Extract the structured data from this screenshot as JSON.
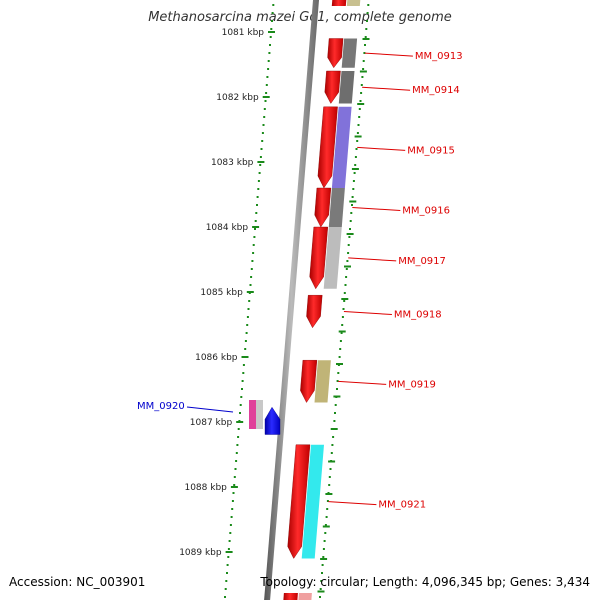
{
  "title": "Methanosarcina mazei Go1, complete genome",
  "footer": {
    "accession": "Accession: NC_003901",
    "topology": "Topology: circular; Length: 4,096,345 bp; Genes: 3,434"
  },
  "colors": {
    "dot_track": "#1a8a1a",
    "backbone": "#7a7a7a",
    "gene_forward": "#ee0000",
    "label_forward": "#dd0000",
    "label_reverse": "#0000cc"
  },
  "ticks": [
    {
      "kbp": 1081,
      "label": "1081 kbp"
    },
    {
      "kbp": 1082,
      "label": "1082 kbp"
    },
    {
      "kbp": 1083,
      "label": "1083 kbp"
    },
    {
      "kbp": 1084,
      "label": "1084 kbp"
    },
    {
      "kbp": 1085,
      "label": "1085 kbp"
    },
    {
      "kbp": 1086,
      "label": "1086 kbp"
    },
    {
      "kbp": 1087,
      "label": "1087 kbp"
    },
    {
      "kbp": 1088,
      "label": "1088 kbp"
    },
    {
      "kbp": 1089,
      "label": "1089 kbp"
    }
  ],
  "genes": [
    {
      "id": "MM_0913",
      "label": "MM_0913",
      "start_kbp": 1081.1,
      "end_kbp": 1081.55,
      "strand": "+",
      "feature_color": "#707070"
    },
    {
      "id": "MM_0914",
      "label": "MM_0914",
      "start_kbp": 1081.6,
      "end_kbp": 1082.1,
      "strand": "+",
      "feature_color": "#666666"
    },
    {
      "id": "MM_0915",
      "label": "MM_0915",
      "start_kbp": 1082.15,
      "end_kbp": 1083.4,
      "strand": "+",
      "feature_color": "#7a6ad8"
    },
    {
      "id": "MM_0916",
      "label": "MM_0916",
      "start_kbp": 1083.4,
      "end_kbp": 1084.0,
      "strand": "+",
      "feature_color": "#737373"
    },
    {
      "id": "MM_0917",
      "label": "MM_0917",
      "start_kbp": 1084.0,
      "end_kbp": 1084.95,
      "strand": "+",
      "feature_color": "#b8b8b8"
    },
    {
      "id": "MM_0918",
      "label": "MM_0918",
      "start_kbp": 1085.05,
      "end_kbp": 1085.55,
      "strand": "+",
      "feature_color": null
    },
    {
      "id": "MM_0919",
      "label": "MM_0919",
      "start_kbp": 1086.05,
      "end_kbp": 1086.7,
      "strand": "+",
      "feature_color": "#bdb070"
    },
    {
      "id": "MM_0920",
      "label": "MM_0920",
      "start_kbp": 1086.65,
      "end_kbp": 1087.1,
      "strand": "-",
      "feature_color": "#e0409a"
    },
    {
      "id": "MM_0921",
      "label": "MM_0921",
      "start_kbp": 1087.35,
      "end_kbp": 1089.1,
      "strand": "+",
      "feature_color": "#28e8ec"
    }
  ]
}
